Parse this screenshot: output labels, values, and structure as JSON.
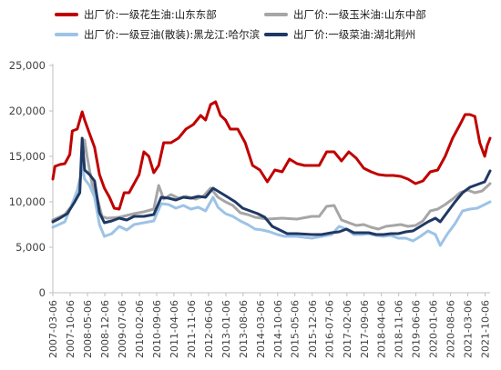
{
  "chart_data": {
    "type": "line",
    "title": "",
    "xlabel": "",
    "ylabel": "",
    "ylim": [
      0,
      25000
    ],
    "y_ticks": [
      "0",
      "5,000",
      "10,000",
      "15,000",
      "20,000",
      "25,000"
    ],
    "y_tick_values": [
      0,
      5000,
      10000,
      15000,
      20000,
      25000
    ],
    "x_tick_labels": [
      "2007-03-06",
      "2007-10-06",
      "2008-05-06",
      "2008-12-06",
      "2009-07-06",
      "2010-02-06",
      "2010-09-06",
      "2011-04-06",
      "2011-11-06",
      "2012-06-06",
      "2013-01-06",
      "2013-08-06",
      "2014-03-06",
      "2014-10-06",
      "2015-05-06",
      "2015-12-06",
      "2016-07-06",
      "2017-02-06",
      "2017-09-06",
      "2018-04-06",
      "2018-11-06",
      "2019-06-06",
      "2020-01-06",
      "2020-08-06",
      "2021-03-06",
      "2021-10-06"
    ],
    "x_range": [
      "2007-03-06",
      "2021-12-06"
    ],
    "grid": false,
    "legend_position": "top",
    "series": [
      {
        "name": "出厂价:一级花生油:山东东部",
        "color": "#c00000",
        "points": [
          [
            "2007-03-06",
            12500
          ],
          [
            "2007-04-01",
            13900
          ],
          [
            "2007-06-01",
            14100
          ],
          [
            "2007-08-01",
            14200
          ],
          [
            "2007-10-01",
            15200
          ],
          [
            "2007-11-01",
            17800
          ],
          [
            "2008-01-01",
            18000
          ],
          [
            "2008-03-01",
            19900
          ],
          [
            "2008-04-01",
            19000
          ],
          [
            "2008-06-01",
            17500
          ],
          [
            "2008-08-01",
            16000
          ],
          [
            "2008-10-01",
            13000
          ],
          [
            "2008-12-01",
            11500
          ],
          [
            "2009-02-01",
            10500
          ],
          [
            "2009-04-01",
            9300
          ],
          [
            "2009-06-01",
            9200
          ],
          [
            "2009-08-01",
            11000
          ],
          [
            "2009-10-01",
            11000
          ],
          [
            "2009-12-01",
            12000
          ],
          [
            "2010-02-01",
            13000
          ],
          [
            "2010-04-01",
            15500
          ],
          [
            "2010-06-01",
            15000
          ],
          [
            "2010-08-01",
            13200
          ],
          [
            "2010-10-01",
            14000
          ],
          [
            "2010-12-01",
            16500
          ],
          [
            "2011-03-01",
            16500
          ],
          [
            "2011-06-01",
            17000
          ],
          [
            "2011-09-01",
            18000
          ],
          [
            "2011-12-01",
            18500
          ],
          [
            "2012-03-01",
            19500
          ],
          [
            "2012-05-01",
            19000
          ],
          [
            "2012-07-01",
            20700
          ],
          [
            "2012-09-01",
            21000
          ],
          [
            "2012-11-01",
            19500
          ],
          [
            "2013-01-01",
            19000
          ],
          [
            "2013-03-01",
            18000
          ],
          [
            "2013-06-01",
            18000
          ],
          [
            "2013-09-01",
            16500
          ],
          [
            "2013-12-01",
            14000
          ],
          [
            "2014-03-01",
            13500
          ],
          [
            "2014-06-01",
            12200
          ],
          [
            "2014-09-01",
            13500
          ],
          [
            "2014-12-01",
            13300
          ],
          [
            "2015-03-01",
            14700
          ],
          [
            "2015-06-01",
            14200
          ],
          [
            "2015-09-01",
            14000
          ],
          [
            "2015-12-01",
            14000
          ],
          [
            "2016-03-01",
            14000
          ],
          [
            "2016-06-01",
            15500
          ],
          [
            "2016-09-01",
            15500
          ],
          [
            "2016-12-01",
            14500
          ],
          [
            "2017-03-01",
            15500
          ],
          [
            "2017-06-01",
            14800
          ],
          [
            "2017-09-01",
            13700
          ],
          [
            "2017-12-01",
            13300
          ],
          [
            "2018-03-01",
            13000
          ],
          [
            "2018-06-01",
            12900
          ],
          [
            "2018-09-01",
            12900
          ],
          [
            "2018-12-01",
            12800
          ],
          [
            "2019-03-01",
            12500
          ],
          [
            "2019-06-01",
            12000
          ],
          [
            "2019-09-01",
            12300
          ],
          [
            "2019-12-01",
            13300
          ],
          [
            "2020-03-01",
            13500
          ],
          [
            "2020-06-01",
            15000
          ],
          [
            "2020-09-01",
            17000
          ],
          [
            "2020-12-01",
            18500
          ],
          [
            "2021-02-01",
            19600
          ],
          [
            "2021-04-01",
            19600
          ],
          [
            "2021-06-01",
            19400
          ],
          [
            "2021-08-01",
            16500
          ],
          [
            "2021-10-01",
            15000
          ],
          [
            "2021-11-01",
            16200
          ],
          [
            "2021-12-06",
            17000
          ]
        ]
      },
      {
        "name": "出厂价:一级玉米油:山东中部",
        "color": "#a6a6a6",
        "points": [
          [
            "2007-03-06",
            8000
          ],
          [
            "2007-08-01",
            8600
          ],
          [
            "2007-12-01",
            10000
          ],
          [
            "2008-03-01",
            13500
          ],
          [
            "2008-04-01",
            16800
          ],
          [
            "2008-05-01",
            15000
          ],
          [
            "2008-07-01",
            12000
          ],
          [
            "2008-09-01",
            10500
          ],
          [
            "2008-11-01",
            8400
          ],
          [
            "2009-01-01",
            8200
          ],
          [
            "2009-06-01",
            8300
          ],
          [
            "2009-12-01",
            8700
          ],
          [
            "2010-04-01",
            8900
          ],
          [
            "2010-08-01",
            9200
          ],
          [
            "2010-10-01",
            11800
          ],
          [
            "2010-12-01",
            10300
          ],
          [
            "2011-03-01",
            10800
          ],
          [
            "2011-06-01",
            10400
          ],
          [
            "2011-09-01",
            10600
          ],
          [
            "2012-01-01",
            10300
          ],
          [
            "2012-04-01",
            10600
          ],
          [
            "2012-07-01",
            11500
          ],
          [
            "2012-10-01",
            10500
          ],
          [
            "2013-01-01",
            10000
          ],
          [
            "2013-04-01",
            9600
          ],
          [
            "2013-07-01",
            8800
          ],
          [
            "2013-10-01",
            8600
          ],
          [
            "2014-01-01",
            8300
          ],
          [
            "2014-06-01",
            8100
          ],
          [
            "2014-12-01",
            8200
          ],
          [
            "2015-06-01",
            8100
          ],
          [
            "2015-12-01",
            8400
          ],
          [
            "2016-03-01",
            8400
          ],
          [
            "2016-06-01",
            9500
          ],
          [
            "2016-09-01",
            9600
          ],
          [
            "2016-12-01",
            8000
          ],
          [
            "2017-03-01",
            7700
          ],
          [
            "2017-06-01",
            7400
          ],
          [
            "2017-09-01",
            7500
          ],
          [
            "2017-12-01",
            7200
          ],
          [
            "2018-03-01",
            7000
          ],
          [
            "2018-06-01",
            7300
          ],
          [
            "2018-09-01",
            7400
          ],
          [
            "2018-12-01",
            7500
          ],
          [
            "2019-03-01",
            7300
          ],
          [
            "2019-06-01",
            7400
          ],
          [
            "2019-09-01",
            7900
          ],
          [
            "2019-12-01",
            9000
          ],
          [
            "2020-03-01",
            9200
          ],
          [
            "2020-06-01",
            9700
          ],
          [
            "2020-09-01",
            10300
          ],
          [
            "2020-12-01",
            11000
          ],
          [
            "2021-03-01",
            11300
          ],
          [
            "2021-06-01",
            11000
          ],
          [
            "2021-09-01",
            11200
          ],
          [
            "2021-12-06",
            12000
          ]
        ]
      },
      {
        "name": "出厂价:一级豆油(散装):黑龙江:哈尔滨",
        "color": "#9dc3e6",
        "points": [
          [
            "2007-03-06",
            7200
          ],
          [
            "2007-08-01",
            7800
          ],
          [
            "2007-12-01",
            10500
          ],
          [
            "2008-02-01",
            12000
          ],
          [
            "2008-03-01",
            14000
          ],
          [
            "2008-04-01",
            12500
          ],
          [
            "2008-06-01",
            11800
          ],
          [
            "2008-08-01",
            10500
          ],
          [
            "2008-10-01",
            7500
          ],
          [
            "2008-12-01",
            6200
          ],
          [
            "2009-03-01",
            6500
          ],
          [
            "2009-06-01",
            7300
          ],
          [
            "2009-09-01",
            6900
          ],
          [
            "2009-12-01",
            7500
          ],
          [
            "2010-04-01",
            7700
          ],
          [
            "2010-08-01",
            7900
          ],
          [
            "2010-11-01",
            9800
          ],
          [
            "2011-02-01",
            9700
          ],
          [
            "2011-05-01",
            9300
          ],
          [
            "2011-08-01",
            9600
          ],
          [
            "2011-11-01",
            9200
          ],
          [
            "2012-02-01",
            9400
          ],
          [
            "2012-05-01",
            9000
          ],
          [
            "2012-08-01",
            10500
          ],
          [
            "2012-10-01",
            9400
          ],
          [
            "2013-01-01",
            8700
          ],
          [
            "2013-04-01",
            8400
          ],
          [
            "2013-07-01",
            7900
          ],
          [
            "2013-10-01",
            7500
          ],
          [
            "2014-01-01",
            7000
          ],
          [
            "2014-04-01",
            6900
          ],
          [
            "2014-07-01",
            6700
          ],
          [
            "2014-10-01",
            6400
          ],
          [
            "2015-01-01",
            6200
          ],
          [
            "2015-06-01",
            6200
          ],
          [
            "2015-12-01",
            6000
          ],
          [
            "2016-04-01",
            6200
          ],
          [
            "2016-08-01",
            6400
          ],
          [
            "2016-11-01",
            7300
          ],
          [
            "2017-02-01",
            7000
          ],
          [
            "2017-05-01",
            6400
          ],
          [
            "2017-08-01",
            6400
          ],
          [
            "2017-11-01",
            6500
          ],
          [
            "2018-02-01",
            6300
          ],
          [
            "2018-05-01",
            6200
          ],
          [
            "2018-08-01",
            6300
          ],
          [
            "2018-11-01",
            6000
          ],
          [
            "2019-02-01",
            6000
          ],
          [
            "2019-05-01",
            5700
          ],
          [
            "2019-08-01",
            6200
          ],
          [
            "2019-11-01",
            6800
          ],
          [
            "2020-02-01",
            6400
          ],
          [
            "2020-04-01",
            5200
          ],
          [
            "2020-07-01",
            6500
          ],
          [
            "2020-10-01",
            7600
          ],
          [
            "2021-01-01",
            9000
          ],
          [
            "2021-04-01",
            9200
          ],
          [
            "2021-07-01",
            9300
          ],
          [
            "2021-10-01",
            9700
          ],
          [
            "2021-12-06",
            10000
          ]
        ]
      },
      {
        "name": "出厂价:一级菜油:湖北荆州",
        "color": "#1f3864",
        "points": [
          [
            "2007-03-06",
            7800
          ],
          [
            "2007-06-01",
            8200
          ],
          [
            "2007-09-01",
            8700
          ],
          [
            "2007-12-01",
            10000
          ],
          [
            "2008-02-01",
            11000
          ],
          [
            "2008-03-01",
            17000
          ],
          [
            "2008-04-01",
            13500
          ],
          [
            "2008-06-01",
            13000
          ],
          [
            "2008-08-01",
            12300
          ],
          [
            "2008-10-01",
            8800
          ],
          [
            "2008-12-01",
            7700
          ],
          [
            "2009-03-01",
            7900
          ],
          [
            "2009-06-01",
            8200
          ],
          [
            "2009-09-01",
            8000
          ],
          [
            "2009-12-01",
            8400
          ],
          [
            "2010-04-01",
            8400
          ],
          [
            "2010-08-01",
            8600
          ],
          [
            "2010-11-01",
            10500
          ],
          [
            "2011-02-01",
            10400
          ],
          [
            "2011-05-01",
            10200
          ],
          [
            "2011-08-01",
            10500
          ],
          [
            "2011-11-01",
            10400
          ],
          [
            "2012-02-01",
            10600
          ],
          [
            "2012-05-01",
            10500
          ],
          [
            "2012-08-01",
            11500
          ],
          [
            "2012-11-01",
            11000
          ],
          [
            "2013-02-01",
            10500
          ],
          [
            "2013-05-01",
            10000
          ],
          [
            "2013-08-01",
            9300
          ],
          [
            "2013-11-01",
            9000
          ],
          [
            "2014-02-01",
            8700
          ],
          [
            "2014-05-01",
            8300
          ],
          [
            "2014-08-01",
            7300
          ],
          [
            "2014-11-01",
            6900
          ],
          [
            "2015-02-01",
            6500
          ],
          [
            "2015-06-01",
            6500
          ],
          [
            "2015-12-01",
            6400
          ],
          [
            "2016-04-01",
            6400
          ],
          [
            "2016-08-01",
            6600
          ],
          [
            "2016-11-01",
            6700
          ],
          [
            "2017-02-01",
            7000
          ],
          [
            "2017-05-01",
            6600
          ],
          [
            "2017-08-01",
            6600
          ],
          [
            "2017-11-01",
            6600
          ],
          [
            "2018-02-01",
            6400
          ],
          [
            "2018-05-01",
            6400
          ],
          [
            "2018-08-01",
            6500
          ],
          [
            "2018-11-01",
            6500
          ],
          [
            "2019-02-01",
            6700
          ],
          [
            "2019-05-01",
            6800
          ],
          [
            "2019-08-01",
            7300
          ],
          [
            "2019-11-01",
            7800
          ],
          [
            "2020-02-01",
            8200
          ],
          [
            "2020-04-01",
            7800
          ],
          [
            "2020-07-01",
            8900
          ],
          [
            "2020-10-01",
            10000
          ],
          [
            "2021-01-01",
            11000
          ],
          [
            "2021-04-01",
            11600
          ],
          [
            "2021-07-01",
            11900
          ],
          [
            "2021-10-01",
            12200
          ],
          [
            "2021-12-06",
            13400
          ]
        ]
      }
    ]
  }
}
